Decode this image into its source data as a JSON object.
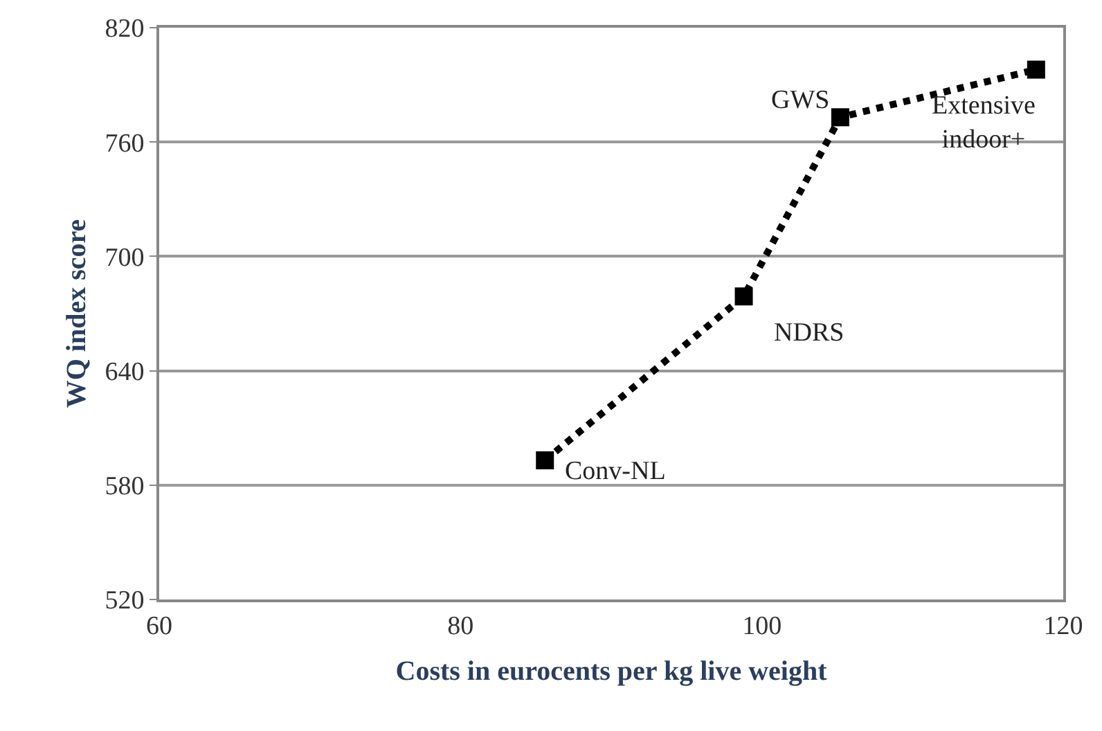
{
  "chart_data": {
    "type": "line",
    "xlabel": "Costs in eurocents per kg live weight",
    "ylabel": "WQ index score",
    "x": [
      85.6,
      98.8,
      105.2,
      118.2
    ],
    "series": [
      {
        "color": "#000000",
        "values": [
          593,
          679,
          773,
          798
        ]
      }
    ],
    "annotations": [
      {
        "text": "Conv-NL",
        "x": 85.6,
        "y": 593
      },
      {
        "text": "NDRS",
        "x": 98.8,
        "y": 679
      },
      {
        "text": "GWS",
        "x": 105.2,
        "y": 773
      },
      {
        "text": "Extensive\nindoor+",
        "x": 118.2,
        "y": 798
      }
    ],
    "xlim": [
      60,
      120
    ],
    "xticks": [
      60,
      80,
      100,
      120
    ],
    "ylim": [
      520,
      820
    ],
    "yticks": [
      520,
      580,
      640,
      700,
      760,
      820
    ],
    "grid": "y",
    "marker": "square",
    "line_style": "dotted",
    "legend": false
  }
}
